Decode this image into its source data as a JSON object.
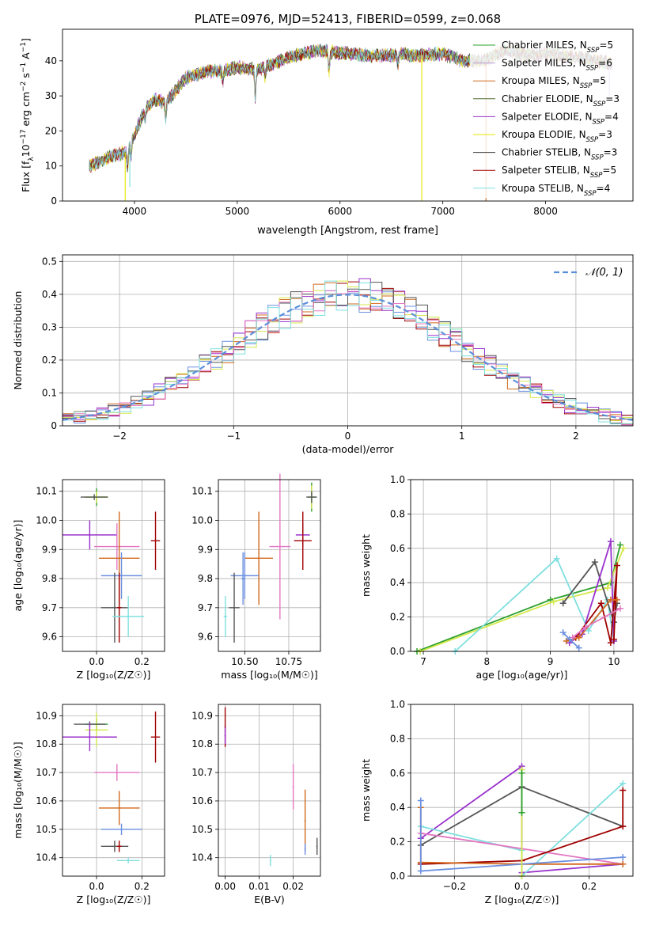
{
  "chart_data": [
    {
      "id": "spectrum",
      "type": "line",
      "title": "PLATE=0976, MJD=52413, FIBERID=0599, z=0.068",
      "xlabel": "wavelength [Angstrom, rest frame]",
      "ylabel_parts": [
        "Flux [f",
        "λ",
        "10",
        "−17",
        " erg cm",
        "−2",
        " s",
        "−1",
        " A",
        "−1",
        "]"
      ],
      "xlim": [
        3300,
        8850
      ],
      "ylim": [
        0,
        49
      ],
      "xticks": [
        4000,
        5000,
        6000,
        7000,
        8000
      ],
      "yticks": [
        0,
        10,
        20,
        30,
        40
      ],
      "legend_position": "top-right",
      "anchors_x": [
        3560,
        3800,
        3930,
        4000,
        4100,
        4200,
        4300,
        4500,
        4700,
        4850,
        5000,
        5200,
        5500,
        5800,
        5900,
        6100,
        6300,
        6500,
        6600,
        6700,
        7000,
        7200,
        7400,
        7600,
        7800,
        8000,
        8300,
        8500,
        8650
      ],
      "anchors_y": [
        10,
        13,
        14,
        19,
        26,
        29,
        28,
        35,
        37,
        37,
        38,
        37.5,
        41,
        43,
        42.5,
        42,
        41.5,
        41.5,
        42,
        41.5,
        42,
        40,
        40,
        43,
        41.5,
        42,
        41,
        40,
        39
      ],
      "absorption_features": [
        {
          "x": 3933,
          "depth": 5
        },
        {
          "x": 3968,
          "depth": 4
        },
        {
          "x": 4102,
          "depth": 3
        },
        {
          "x": 4305,
          "depth": 5
        },
        {
          "x": 4861,
          "depth": 3
        },
        {
          "x": 5175,
          "depth": 9
        },
        {
          "x": 5270,
          "depth": 3
        },
        {
          "x": 5893,
          "depth": 6
        },
        {
          "x": 6563,
          "depth": 3
        }
      ],
      "spikes": [
        {
          "x": 3910,
          "bottom": 0,
          "series": 5
        },
        {
          "x": 3955,
          "bottom": 4,
          "series": 8
        },
        {
          "x": 6795,
          "bottom": 0,
          "series": 5
        },
        {
          "x": 7420,
          "bottom": 0,
          "series": 2
        },
        {
          "x": 8620,
          "bottom": 30,
          "series": 1
        }
      ],
      "series": [
        {
          "name": "Chabrier MILES",
          "n": "5",
          "color": "#2ca02c"
        },
        {
          "name": "Salpeter MILES",
          "n": "6",
          "color": "#b39ddb"
        },
        {
          "name": "Kroupa MILES",
          "n": "5",
          "color": "#d2691e"
        },
        {
          "name": "Chabrier ELODIE",
          "n": "3",
          "color": "#556b2f"
        },
        {
          "name": "Salpeter ELODIE",
          "n": "4",
          "color": "#9932cc"
        },
        {
          "name": "Kroupa ELODIE",
          "n": "3",
          "color": "#e6e600"
        },
        {
          "name": "Chabrier STELIB",
          "n": "3",
          "color": "#404040"
        },
        {
          "name": "Salpeter STELIB",
          "n": "5",
          "color": "#a00000"
        },
        {
          "name": "Kroupa STELIB",
          "n": "4",
          "color": "#7fdfdf"
        }
      ],
      "legend_n_label": "N",
      "legend_n_sub": "SSP"
    },
    {
      "id": "residuals",
      "type": "histogram",
      "xlabel": "(data-model)/error",
      "ylabel": "Normed distribution",
      "xlim": [
        -2.5,
        2.5
      ],
      "ylim": [
        0,
        0.52
      ],
      "xticks": [
        -2,
        -1,
        0,
        1,
        2
      ],
      "yticks": [
        0,
        0.1,
        0.2,
        0.3,
        0.4,
        0.5
      ],
      "bin_width": 0.1,
      "bin_start": -2.5,
      "legend": "𝒩(0, 1)",
      "gaussian_color": "#5b8fd9",
      "series_colors": [
        "#d2691e",
        "#6a8fe0",
        "#a00000",
        "#9932cc",
        "#d4e84a",
        "#555555",
        "#e377c2",
        "#7fdfdf"
      ],
      "noise_amplitude": 0.045
    },
    {
      "id": "age-vs-Z",
      "type": "errorbar",
      "xlabel": "Z [log₁₀(Z/Z☉)]",
      "ylabel": "age  [log₁₀(age/yr)]",
      "xlim": [
        -0.15,
        0.3
      ],
      "ylim": [
        9.55,
        10.14
      ],
      "xticks": [
        0.0,
        0.2
      ],
      "yticks": [
        9.6,
        9.7,
        9.8,
        9.9,
        10.0,
        10.1
      ],
      "ytick_labels": [
        "9.6",
        "9.7",
        "9.8",
        "9.9",
        "10.0",
        "10.1"
      ],
      "xtick_labels": [
        "0.0",
        "0.2"
      ],
      "points": [
        {
          "x": 0.0,
          "y": 10.08,
          "xerr": 0.05,
          "yerr": 0.03,
          "color": "#2ca02c"
        },
        {
          "x": 0.0,
          "y": 10.08,
          "xerr": 0.05,
          "yerr": 0.02,
          "color": "#d4e84a"
        },
        {
          "x": -0.01,
          "y": 10.08,
          "xerr": 0.06,
          "yerr": 0.01,
          "color": "#555555"
        },
        {
          "x": -0.03,
          "y": 9.95,
          "xerr": 0.12,
          "yerr": 0.05,
          "color": "#9932cc"
        },
        {
          "x": 0.26,
          "y": 9.93,
          "xerr": 0.02,
          "yerr": 0.1,
          "color": "#a00000"
        },
        {
          "x": 0.09,
          "y": 9.91,
          "xerr": 0.1,
          "yerr": 0.08,
          "color": "#e377c2"
        },
        {
          "x": 0.1,
          "y": 9.87,
          "xerr": 0.09,
          "yerr": 0.16,
          "color": "#d2691e"
        },
        {
          "x": 0.11,
          "y": 9.81,
          "xerr": 0.09,
          "yerr": 0.08,
          "color": "#6a8fe0"
        },
        {
          "x": 0.08,
          "y": 9.7,
          "xerr": 0.06,
          "yerr": 0.12,
          "color": "#555555"
        },
        {
          "x": 0.1,
          "y": 9.7,
          "xerr": 0.01,
          "yerr": 0.12,
          "color": "#a00000"
        },
        {
          "x": 0.14,
          "y": 9.67,
          "xerr": 0.07,
          "yerr": 0.07,
          "color": "#7fdfdf"
        }
      ]
    },
    {
      "id": "age-vs-mass",
      "type": "errorbar",
      "xlabel": "mass [log₁₀(M/M☉)]",
      "ylabel": "",
      "xlim": [
        10.35,
        10.93
      ],
      "ylim": [
        9.55,
        10.14
      ],
      "xticks": [
        10.5,
        10.75
      ],
      "xtick_labels": [
        "10.50",
        "10.75"
      ],
      "yticks": [
        9.6,
        9.7,
        9.8,
        9.9,
        10.0,
        10.1
      ],
      "ytick_labels": [
        "9.6",
        "9.7",
        "9.8",
        "9.9",
        "10.0",
        "10.1"
      ],
      "points": [
        {
          "x": 10.88,
          "y": 10.08,
          "xerr": 0.02,
          "yerr": 0.05,
          "color": "#2ca02c"
        },
        {
          "x": 10.88,
          "y": 10.08,
          "xerr": 0.01,
          "yerr": 0.04,
          "color": "#d4e84a"
        },
        {
          "x": 10.88,
          "y": 10.08,
          "xerr": 0.03,
          "yerr": 0.02,
          "color": "#555555"
        },
        {
          "x": 10.83,
          "y": 9.95,
          "xerr": 0.04,
          "yerr": 0.04,
          "color": "#9932cc"
        },
        {
          "x": 10.83,
          "y": 9.93,
          "xerr": 0.05,
          "yerr": 0.1,
          "color": "#a00000"
        },
        {
          "x": 10.7,
          "y": 9.91,
          "xerr": 0.06,
          "yerr": 0.25,
          "color": "#e377c2"
        },
        {
          "x": 10.58,
          "y": 9.87,
          "xerr": 0.08,
          "yerr": 0.16,
          "color": "#d2691e"
        },
        {
          "x": 10.5,
          "y": 9.81,
          "xerr": 0.08,
          "yerr": 0.08,
          "color": "#6a8fe0"
        },
        {
          "x": 10.49,
          "y": 9.8,
          "xerr": 0.01,
          "yerr": 0.09,
          "color": "#6a8fe0"
        },
        {
          "x": 10.44,
          "y": 9.7,
          "xerr": 0.03,
          "yerr": 0.12,
          "color": "#555555"
        },
        {
          "x": 10.39,
          "y": 9.67,
          "xerr": 0.01,
          "yerr": 0.07,
          "color": "#7fdfdf"
        }
      ]
    },
    {
      "id": "mass-weight-vs-age",
      "type": "line",
      "xlabel": "age  [log₁₀(age/yr)]",
      "ylabel": "mass weight",
      "xlim": [
        6.8,
        10.3
      ],
      "ylim": [
        0,
        1
      ],
      "xticks": [
        7,
        8,
        9,
        10
      ],
      "yticks": [
        0,
        0.2,
        0.4,
        0.6,
        0.8,
        1.0
      ],
      "ytick_labels": [
        "0.0",
        "0.2",
        "0.4",
        "0.6",
        "0.8",
        "1.0"
      ],
      "series": [
        {
          "color": "#2ca02c",
          "x": [
            6.9,
            9.0,
            9.95,
            10.1
          ],
          "y": [
            0.0,
            0.3,
            0.4,
            0.62
          ]
        },
        {
          "color": "#d4e84a",
          "x": [
            6.95,
            9.05,
            9.9,
            10.15
          ],
          "y": [
            0.0,
            0.29,
            0.37,
            0.6
          ]
        },
        {
          "color": "#7fdfdf",
          "x": [
            7.5,
            9.1,
            9.6,
            9.9,
            10.0
          ],
          "y": [
            0.0,
            0.54,
            0.12,
            0.3,
            0.06
          ]
        },
        {
          "color": "#555555",
          "x": [
            9.2,
            9.7,
            10.0,
            10.05
          ],
          "y": [
            0.28,
            0.52,
            0.17,
            0.28
          ]
        },
        {
          "color": "#9932cc",
          "x": [
            9.3,
            9.5,
            9.95,
            10.0
          ],
          "y": [
            0.05,
            0.1,
            0.64,
            0.06
          ]
        },
        {
          "color": "#a00000",
          "x": [
            9.4,
            9.8,
            9.95,
            10.05,
            10.0
          ],
          "y": [
            0.08,
            0.28,
            0.05,
            0.5,
            0.07
          ]
        },
        {
          "color": "#d2691e",
          "x": [
            9.25,
            9.45,
            9.95,
            10.05
          ],
          "y": [
            0.06,
            0.08,
            0.3,
            0.3
          ]
        },
        {
          "color": "#e377c2",
          "x": [
            9.35,
            9.55,
            10.1
          ],
          "y": [
            0.08,
            0.14,
            0.25
          ]
        },
        {
          "color": "#6a8fe0",
          "x": [
            9.2,
            9.3,
            9.45
          ],
          "y": [
            0.11,
            0.07,
            0.02
          ]
        }
      ]
    },
    {
      "id": "mass-vs-Z",
      "type": "errorbar",
      "xlabel": "Z [log₁₀(Z/Z☉)]",
      "ylabel": "mass [log₁₀(M/M☉)]",
      "xlim": [
        -0.15,
        0.3
      ],
      "ylim": [
        10.335,
        10.94
      ],
      "xticks": [
        0.0,
        0.2
      ],
      "xtick_labels": [
        "0.0",
        "0.2"
      ],
      "yticks": [
        10.4,
        10.5,
        10.6,
        10.7,
        10.8,
        10.9
      ],
      "ytick_labels": [
        "10.4",
        "10.5",
        "10.6",
        "10.7",
        "10.8",
        "10.9"
      ],
      "points": [
        {
          "x": 0.0,
          "y": 10.87,
          "xerr": 0.05,
          "yerr": 0.02,
          "color": "#2ca02c"
        },
        {
          "x": 0.0,
          "y": 10.85,
          "xerr": 0.05,
          "yerr": 0.06,
          "color": "#d4e84a"
        },
        {
          "x": -0.03,
          "y": 10.87,
          "xerr": 0.07,
          "yerr": 0.01,
          "color": "#555555"
        },
        {
          "x": -0.03,
          "y": 10.825,
          "xerr": 0.12,
          "yerr": 0.05,
          "color": "#9932cc"
        },
        {
          "x": 0.26,
          "y": 10.825,
          "xerr": 0.02,
          "yerr": 0.09,
          "color": "#a00000"
        },
        {
          "x": 0.09,
          "y": 10.7,
          "xerr": 0.1,
          "yerr": 0.03,
          "color": "#e377c2"
        },
        {
          "x": 0.1,
          "y": 10.575,
          "xerr": 0.09,
          "yerr": 0.06,
          "color": "#d2691e"
        },
        {
          "x": 0.11,
          "y": 10.5,
          "xerr": 0.09,
          "yerr": 0.02,
          "color": "#6a8fe0"
        },
        {
          "x": 0.08,
          "y": 10.44,
          "xerr": 0.06,
          "yerr": 0.02,
          "color": "#555555"
        },
        {
          "x": 0.1,
          "y": 10.44,
          "xerr": 0.01,
          "yerr": 0.02,
          "color": "#a00000"
        },
        {
          "x": 0.14,
          "y": 10.39,
          "xerr": 0.05,
          "yerr": 0.01,
          "color": "#7fdfdf"
        }
      ]
    },
    {
      "id": "mass-vs-EBV",
      "type": "errorbar",
      "xlabel": "E(B-V)",
      "ylabel": "",
      "xlim": [
        -0.002,
        0.028
      ],
      "ylim": [
        10.335,
        10.94
      ],
      "xticks": [
        0.0,
        0.01,
        0.02
      ],
      "xtick_labels": [
        "0.00",
        "0.01",
        "0.02"
      ],
      "yticks": [
        10.4,
        10.5,
        10.6,
        10.7,
        10.8,
        10.9
      ],
      "ytick_labels": [
        "10.4",
        "10.5",
        "10.6",
        "10.7",
        "10.8",
        "10.9"
      ],
      "points": [
        {
          "x": 0.0,
          "y": 10.86,
          "xerr": 0.0,
          "yerr": 0.07,
          "color": "#a00000"
        },
        {
          "x": 0.0,
          "y": 10.83,
          "xerr": 0.0,
          "yerr": 0.03,
          "color": "#9932cc"
        },
        {
          "x": 0.0133,
          "y": 10.39,
          "xerr": 0.0,
          "yerr": 0.02,
          "color": "#7fdfdf"
        },
        {
          "x": 0.02,
          "y": 10.65,
          "xerr": 0.0,
          "yerr": 0.08,
          "color": "#e377c2"
        },
        {
          "x": 0.0235,
          "y": 10.53,
          "xerr": 0.0,
          "yerr": 0.11,
          "color": "#d2691e"
        },
        {
          "x": 0.0235,
          "y": 10.43,
          "xerr": 0.0,
          "yerr": 0.02,
          "color": "#6a8fe0"
        },
        {
          "x": 0.027,
          "y": 10.44,
          "xerr": 0.0,
          "yerr": 0.03,
          "color": "#555555"
        }
      ]
    },
    {
      "id": "mass-weight-vs-Z",
      "type": "line",
      "xlabel": "Z [log₁₀(Z/Z☉)]",
      "ylabel": "mass weight",
      "xlim": [
        -0.33,
        0.33
      ],
      "ylim": [
        0,
        1
      ],
      "xticks": [
        -0.2,
        0.0,
        0.2
      ],
      "xtick_labels": [
        "−0.2",
        "0.0",
        "0.2"
      ],
      "yticks": [
        0,
        0.2,
        0.4,
        0.6,
        0.8,
        1.0
      ],
      "ytick_labels": [
        "0.0",
        "0.2",
        "0.4",
        "0.6",
        "0.8",
        "1.0"
      ],
      "series": [
        {
          "color": "#9932cc",
          "x": [
            -0.3,
            0.0,
            0.0,
            0.3
          ],
          "y": [
            0.22,
            0.64,
            0.02,
            0.07
          ]
        },
        {
          "color": "#555555",
          "x": [
            -0.3,
            0.0,
            0.3
          ],
          "y": [
            0.18,
            0.52,
            0.29
          ]
        },
        {
          "color": "#7fdfdf",
          "x": [
            -0.3,
            0.0,
            0.0,
            0.3
          ],
          "y": [
            0.29,
            0.15,
            0.0,
            0.54
          ]
        },
        {
          "color": "#e377c2",
          "x": [
            -0.3,
            0.3
          ],
          "y": [
            0.25,
            0.07
          ]
        },
        {
          "color": "#a00000",
          "x": [
            -0.3,
            0.0,
            0.3,
            0.3
          ],
          "y": [
            0.07,
            0.09,
            0.29,
            0.5
          ]
        },
        {
          "color": "#d2691e",
          "x": [
            -0.3,
            -0.3,
            0.0,
            0.3
          ],
          "y": [
            0.4,
            0.08,
            0.07,
            0.07
          ]
        },
        {
          "color": "#6a8fe0",
          "x": [
            -0.3,
            -0.3,
            0.3
          ],
          "y": [
            0.44,
            0.03,
            0.11
          ]
        },
        {
          "color": "#d4e84a",
          "x": [
            0.0,
            0.0
          ],
          "y": [
            0.0,
            0.62
          ]
        },
        {
          "color": "#2ca02c",
          "x": [
            0.0,
            0.0
          ],
          "y": [
            0.37,
            0.6
          ]
        }
      ]
    }
  ]
}
